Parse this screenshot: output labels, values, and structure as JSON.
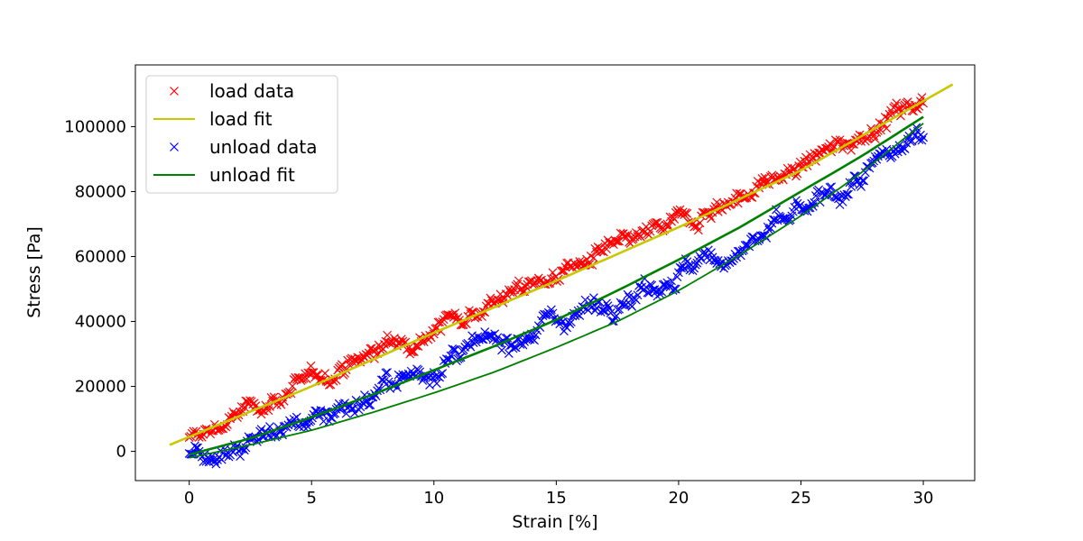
{
  "chart_data": {
    "type": "scatter",
    "title": "",
    "xlabel": "Strain [%]",
    "ylabel": "Stress [Pa]",
    "xlim": [
      -2.2,
      32.1
    ],
    "ylim": [
      -9000,
      119000
    ],
    "xticks": [
      0,
      5,
      10,
      15,
      20,
      25,
      30
    ],
    "yticks": [
      0,
      20000,
      40000,
      60000,
      80000,
      100000
    ],
    "xtick_labels": [
      "0",
      "5",
      "10",
      "15",
      "20",
      "25",
      "30"
    ],
    "ytick_labels": [
      "0",
      "20000",
      "40000",
      "60000",
      "80000",
      "100000"
    ],
    "grid": false,
    "legend": {
      "position": "top-left"
    },
    "series": [
      {
        "name": "load data",
        "kind": "scatter",
        "marker": "x",
        "color": "#ff0000",
        "noise": 2200,
        "n_points": 520,
        "x": [
          0,
          2.5,
          5,
          7.5,
          10,
          12.5,
          15,
          17.5,
          20,
          22.5,
          25,
          27.5,
          30
        ],
        "y": [
          3000,
          13000,
          21500,
          30500,
          38500,
          46500,
          54500,
          62500,
          70500,
          78500,
          87500,
          98000,
          109000
        ]
      },
      {
        "name": "load fit",
        "kind": "line",
        "color": "#c8c800",
        "x": [
          -0.8,
          5,
          10,
          15,
          20,
          25,
          31.2
        ],
        "y": [
          2000,
          20000,
          36500,
          52500,
          69000,
          86500,
          113000
        ]
      },
      {
        "name": "unload data",
        "kind": "scatter",
        "marker": "x",
        "color": "#0000ff",
        "noise": 2600,
        "n_points": 520,
        "x": [
          0,
          2.5,
          5,
          7.5,
          10,
          12.5,
          15,
          17.5,
          20,
          22.5,
          25,
          27.5,
          30
        ],
        "y": [
          -1500,
          3500,
          10500,
          17500,
          26000,
          33500,
          40500,
          47500,
          55000,
          62000,
          73000,
          83500,
          99000
        ]
      },
      {
        "name": "unload fit",
        "kind": "line",
        "color": "#008000",
        "x": [
          0,
          2.5,
          5,
          7.5,
          10,
          12.5,
          15,
          17.5,
          20,
          22.5,
          25,
          27.5,
          30
        ],
        "y": [
          -1000,
          4000,
          10500,
          17500,
          25000,
          32500,
          40500,
          49500,
          59000,
          69000,
          80000,
          91000,
          103000
        ],
        "y_lower": [
          -2000,
          2000,
          6500,
          12000,
          18000,
          24500,
          32000,
          40000,
          49500,
          60500,
          72500,
          86000,
          101000
        ]
      }
    ]
  }
}
